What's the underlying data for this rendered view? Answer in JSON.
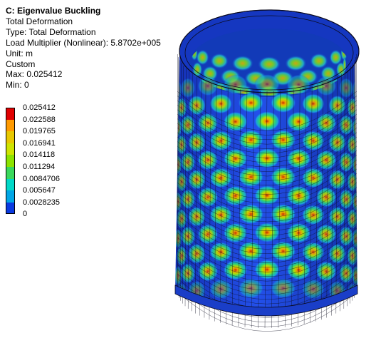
{
  "result": {
    "title": "C: Eigenvalue Buckling",
    "lines": [
      "Total Deformation",
      "Type: Total Deformation",
      "Load Multiplier (Nonlinear): 5.8702e+005",
      "Unit: m",
      "Custom",
      "Max: 0.025412",
      "Min: 0"
    ]
  },
  "legend": {
    "labels": [
      "0.025412",
      "0.022588",
      "0.019765",
      "0.016941",
      "0.014118",
      "0.011294",
      "0.0084706",
      "0.005647",
      "0.0028235",
      "0"
    ],
    "colors": [
      "#e00000",
      "#ff9a00",
      "#e8c800",
      "#cfe400",
      "#8ce300",
      "#3ad85c",
      "#00d8c8",
      "#00a6e6",
      "#0a3ae0"
    ]
  },
  "colors": {
    "mesh_line": "#0b0b1e",
    "cylinder_base": "#1e46e0",
    "cylinder_inner": "#143ac8"
  }
}
